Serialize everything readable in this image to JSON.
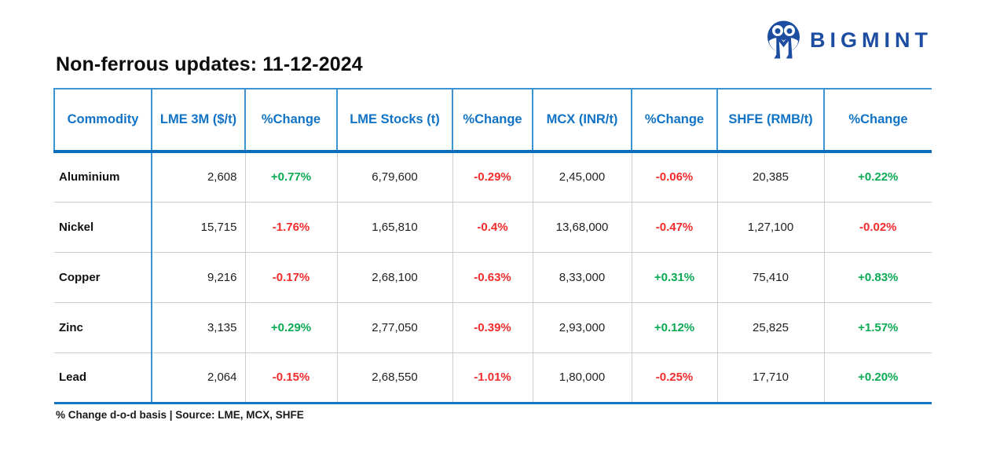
{
  "logo": {
    "text": "BIGMINT",
    "icon": "bigmint-people-m-icon"
  },
  "title": "Non-ferrous updates: 11-12-2024",
  "chart_data": {
    "type": "table",
    "columns": [
      "Commodity",
      "LME 3M ($/t)",
      "%Change",
      "LME Stocks (t)",
      "%Change",
      "MCX (INR/t)",
      "%Change",
      "SHFE (RMB/t)",
      "%Change"
    ],
    "rows": [
      {
        "commodity": "Aluminium",
        "values": [
          "2,608",
          "+0.77%",
          "6,79,600",
          "-0.29%",
          "2,45,000",
          "-0.06%",
          "20,385",
          "+0.22%"
        ]
      },
      {
        "commodity": "Nickel",
        "values": [
          "15,715",
          "-1.76%",
          "1,65,810",
          "-0.4%",
          "13,68,000",
          "-0.47%",
          "1,27,100",
          "-0.02%"
        ]
      },
      {
        "commodity": "Copper",
        "values": [
          "9,216",
          "-0.17%",
          "2,68,100",
          "-0.63%",
          "8,33,000",
          "+0.31%",
          "75,410",
          "+0.83%"
        ]
      },
      {
        "commodity": "Zinc",
        "values": [
          "3,135",
          "+0.29%",
          "2,77,050",
          "-0.39%",
          "2,93,000",
          "+0.12%",
          "25,825",
          "+1.57%"
        ]
      },
      {
        "commodity": "Lead",
        "values": [
          "2,064",
          "-0.15%",
          "2,68,550",
          "-1.01%",
          "1,80,000",
          "-0.25%",
          "17,710",
          "+0.20%"
        ]
      }
    ]
  },
  "footnote": "% Change d-o-d basis | Source: LME, MCX, SHFE",
  "colors": {
    "logo_navy": "#1c4da1",
    "header_text": "#1173c5",
    "border_light": "#3a95d4",
    "border_dark": "#0a6ebd",
    "border_bottom_blue": "#1474c4",
    "separator_gray": "#cdcdcd",
    "positive": "#0caa54",
    "negative": "#f22b2b"
  }
}
